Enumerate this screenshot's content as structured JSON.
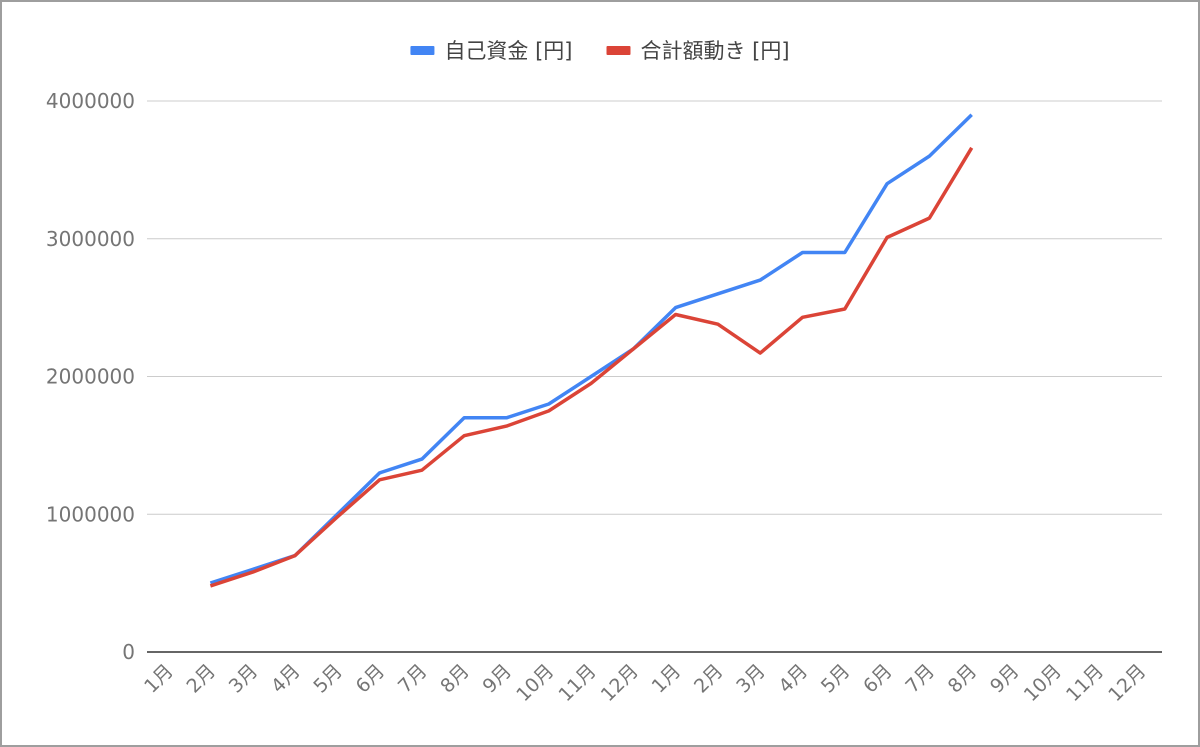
{
  "chart_data": {
    "type": "line",
    "title": "",
    "xlabel": "",
    "ylabel": "",
    "categories": [
      "1月",
      "2月",
      "3月",
      "4月",
      "5月",
      "6月",
      "7月",
      "8月",
      "9月",
      "10月",
      "11月",
      "12月",
      "1月",
      "2月",
      "3月",
      "4月",
      "5月",
      "6月",
      "7月",
      "8月",
      "9月",
      "10月",
      "11月",
      "12月"
    ],
    "ylim": [
      0,
      4000000
    ],
    "yticks": [
      "0",
      "1000000",
      "2000000",
      "3000000",
      "4000000"
    ],
    "grid": true,
    "legend_position": "top",
    "series": [
      {
        "name": "自己資金 [円]",
        "color": "#4285f4",
        "values": [
          null,
          500000,
          600000,
          700000,
          1000000,
          1300000,
          1400000,
          1700000,
          1700000,
          1800000,
          2000000,
          2200000,
          2500000,
          2600000,
          2700000,
          2900000,
          2900000,
          3400000,
          3600000,
          3900000,
          null,
          null,
          null,
          null
        ]
      },
      {
        "name": "合計額動き [円]",
        "color": "#db4437",
        "values": [
          null,
          480000,
          580000,
          700000,
          980000,
          1250000,
          1320000,
          1570000,
          1640000,
          1750000,
          1950000,
          2200000,
          2450000,
          2380000,
          2170000,
          2430000,
          2490000,
          3010000,
          3150000,
          3660000,
          null,
          null,
          null,
          null
        ]
      }
    ]
  }
}
